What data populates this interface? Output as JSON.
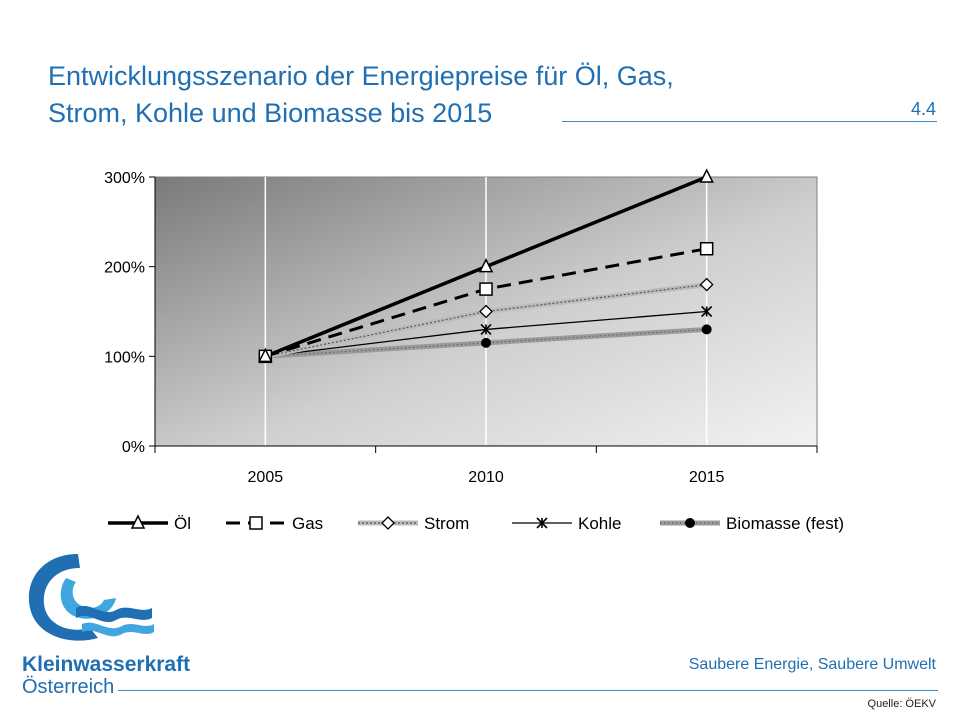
{
  "slide": {
    "title_line1": "Entwicklungsszenario der Energiepreise für Öl, Gas,",
    "title_line2": "Strom, Kohle und Biomasse bis 2015",
    "number": "4.4",
    "tagline": "Saubere Energie, Saubere Umwelt",
    "source": "Quelle: ÖEKV"
  },
  "logo": {
    "name": "Kleinwasserkraft",
    "sub": "Österreich",
    "accent": "#1f6fb2"
  },
  "chart_data": {
    "type": "line",
    "title": "",
    "xlabel": "",
    "ylabel": "",
    "categories": [
      "2005",
      "2010",
      "2015"
    ],
    "yticks": [
      "0%",
      "100%",
      "200%",
      "300%"
    ],
    "ylim": [
      0,
      300
    ],
    "grid": true,
    "legend_position": "bottom",
    "series": [
      {
        "name": "Öl",
        "values": [
          100,
          200,
          300
        ],
        "marker": "triangle",
        "line": "solid-thick",
        "color": "#000000"
      },
      {
        "name": "Gas",
        "values": [
          100,
          175,
          220
        ],
        "marker": "square",
        "line": "dashed",
        "color": "#000000"
      },
      {
        "name": "Strom",
        "values": [
          100,
          150,
          180
        ],
        "marker": "diamond",
        "line": "dotted",
        "color": "#666666"
      },
      {
        "name": "Kohle",
        "values": [
          100,
          130,
          150
        ],
        "marker": "star",
        "line": "solid-thin",
        "color": "#000000"
      },
      {
        "name": "Biomasse (fest)",
        "values": [
          100,
          115,
          130
        ],
        "marker": "circle",
        "line": "gray-thick",
        "color": "#777777"
      }
    ]
  }
}
